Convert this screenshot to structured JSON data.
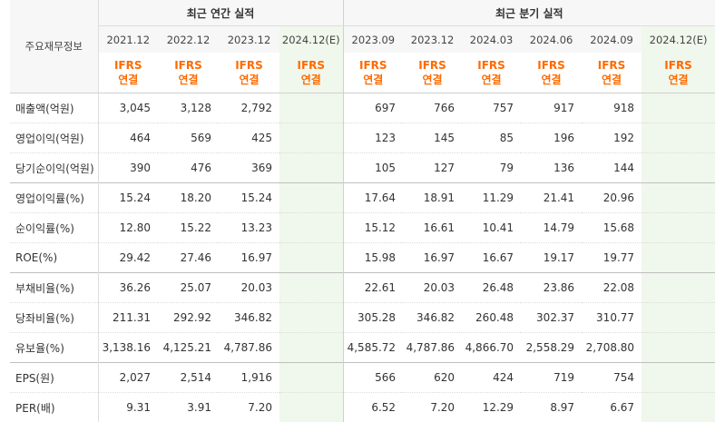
{
  "header": {
    "label_col": "주요재무정보",
    "annual_title": "최근 연간 실적",
    "quarter_title": "최근 분기 실적",
    "annual_periods": [
      "2021.12",
      "2022.12",
      "2023.12",
      "2024.12(E)"
    ],
    "quarter_periods": [
      "2023.09",
      "2023.12",
      "2024.03",
      "2024.06",
      "2024.09",
      "2024.12(E)"
    ],
    "basis_line1": "IFRS",
    "basis_line2": "연결"
  },
  "rows": [
    {
      "label": "매출액(억원)",
      "annual": [
        "3,045",
        "3,128",
        "2,792",
        ""
      ],
      "quarter": [
        "697",
        "766",
        "757",
        "917",
        "918",
        ""
      ]
    },
    {
      "label": "영업이익(억원)",
      "annual": [
        "464",
        "569",
        "425",
        ""
      ],
      "quarter": [
        "123",
        "145",
        "85",
        "196",
        "192",
        ""
      ]
    },
    {
      "label": "당기순이익(억원)",
      "annual": [
        "390",
        "476",
        "369",
        ""
      ],
      "quarter": [
        "105",
        "127",
        "79",
        "136",
        "144",
        ""
      ]
    },
    {
      "label": "영업이익률(%)",
      "annual": [
        "15.24",
        "18.20",
        "15.24",
        ""
      ],
      "quarter": [
        "17.64",
        "18.91",
        "11.29",
        "21.41",
        "20.96",
        ""
      ]
    },
    {
      "label": "순이익률(%)",
      "annual": [
        "12.80",
        "15.22",
        "13.23",
        ""
      ],
      "quarter": [
        "15.12",
        "16.61",
        "10.41",
        "14.79",
        "15.68",
        ""
      ]
    },
    {
      "label": "ROE(%)",
      "annual": [
        "29.42",
        "27.46",
        "16.97",
        ""
      ],
      "quarter": [
        "15.98",
        "16.97",
        "16.67",
        "19.17",
        "19.77",
        ""
      ]
    },
    {
      "label": "부채비율(%)",
      "annual": [
        "36.26",
        "25.07",
        "20.03",
        ""
      ],
      "quarter": [
        "22.61",
        "20.03",
        "26.48",
        "23.86",
        "22.08",
        ""
      ]
    },
    {
      "label": "당좌비율(%)",
      "annual": [
        "211.31",
        "292.92",
        "346.82",
        ""
      ],
      "quarter": [
        "305.28",
        "346.82",
        "260.48",
        "302.37",
        "310.77",
        ""
      ]
    },
    {
      "label": "유보율(%)",
      "annual": [
        "3,138.16",
        "4,125.21",
        "4,787.86",
        ""
      ],
      "quarter": [
        "4,585.72",
        "4,787.86",
        "4,866.70",
        "2,558.29",
        "2,708.80",
        ""
      ]
    },
    {
      "label": "EPS(원)",
      "annual": [
        "2,027",
        "2,514",
        "1,916",
        ""
      ],
      "quarter": [
        "566",
        "620",
        "424",
        "719",
        "754",
        ""
      ]
    },
    {
      "label": "PER(배)",
      "annual": [
        "9.31",
        "3.91",
        "7.20",
        ""
      ],
      "quarter": [
        "6.52",
        "7.20",
        "12.29",
        "8.97",
        "6.67",
        ""
      ]
    }
  ],
  "colors": {
    "accent_orange": "#ff6a00",
    "estimate_bg": "#f0f7ec",
    "header_bg": "#f7f7f7"
  }
}
